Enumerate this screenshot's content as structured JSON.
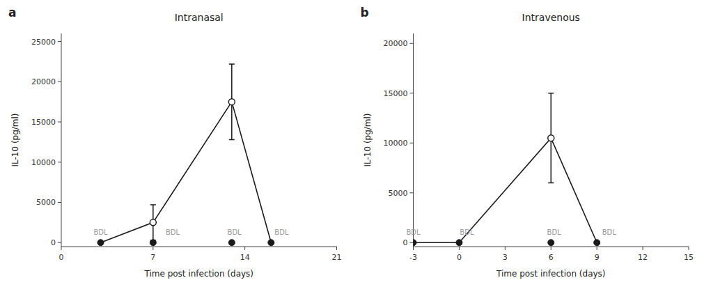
{
  "chart_data": [
    {
      "type": "line",
      "title": "Intranasal",
      "panel_label": "a",
      "x_label": "Time post infection (days)",
      "y_label": "IL-10 (pg/ml)",
      "xlim": [
        0,
        21
      ],
      "ylim": [
        -500,
        26000
      ],
      "xticks": [
        0,
        7,
        14,
        21
      ],
      "yticks": [
        0,
        5000,
        10000,
        15000,
        20000,
        25000
      ],
      "grid": false,
      "series": [
        {
          "type": "line",
          "x": [
            3,
            7,
            13,
            16
          ],
          "values": [
            0,
            2500,
            17500,
            0
          ],
          "color": "#1a1a1a"
        },
        {
          "type": "scatter",
          "marker": "filled",
          "x": [
            3,
            7,
            13,
            16
          ],
          "values": [
            0,
            0,
            0,
            0
          ],
          "color": "#1a1a1a"
        },
        {
          "type": "scatter",
          "marker": "open",
          "x": [
            7,
            13
          ],
          "values": [
            2500,
            17500
          ],
          "errors": [
            2200,
            4700
          ],
          "color": "#1a1a1a"
        }
      ],
      "annotations": [
        {
          "x": 3.0,
          "y": 800,
          "text": "BDL",
          "color": "#999999"
        },
        {
          "x": 8.5,
          "y": 800,
          "text": "BDL",
          "color": "#999999"
        },
        {
          "x": 13.2,
          "y": 800,
          "text": "BDL",
          "color": "#999999"
        },
        {
          "x": 16.8,
          "y": 800,
          "text": "BDL",
          "color": "#999999"
        }
      ]
    },
    {
      "type": "line",
      "title": "Intravenous",
      "panel_label": "b",
      "x_label": "Time post infection (days)",
      "y_label": "IL-10 (pg/ml)",
      "xlim": [
        -3,
        15
      ],
      "ylim": [
        -400,
        21000
      ],
      "xticks": [
        -3,
        0,
        3,
        6,
        9,
        12,
        15
      ],
      "yticks": [
        0,
        5000,
        10000,
        15000,
        20000
      ],
      "grid": false,
      "series": [
        {
          "type": "line",
          "x": [
            -3,
            0,
            6,
            9
          ],
          "values": [
            0,
            0,
            10500,
            0
          ],
          "color": "#1a1a1a"
        },
        {
          "type": "scatter",
          "marker": "filled",
          "x": [
            -3,
            0,
            6,
            9
          ],
          "values": [
            0,
            0,
            0,
            0
          ],
          "color": "#1a1a1a"
        },
        {
          "type": "scatter",
          "marker": "open",
          "x": [
            6
          ],
          "values": [
            10500
          ],
          "errors": [
            4500
          ],
          "color": "#1a1a1a"
        }
      ],
      "annotations": [
        {
          "x": -3.0,
          "y": 650,
          "text": "BDL",
          "color": "#999999"
        },
        {
          "x": 0.5,
          "y": 650,
          "text": "BDL",
          "color": "#999999"
        },
        {
          "x": 6.2,
          "y": 650,
          "text": "BDL",
          "color": "#999999"
        },
        {
          "x": 9.8,
          "y": 650,
          "text": "BDL",
          "color": "#999999"
        }
      ]
    }
  ]
}
